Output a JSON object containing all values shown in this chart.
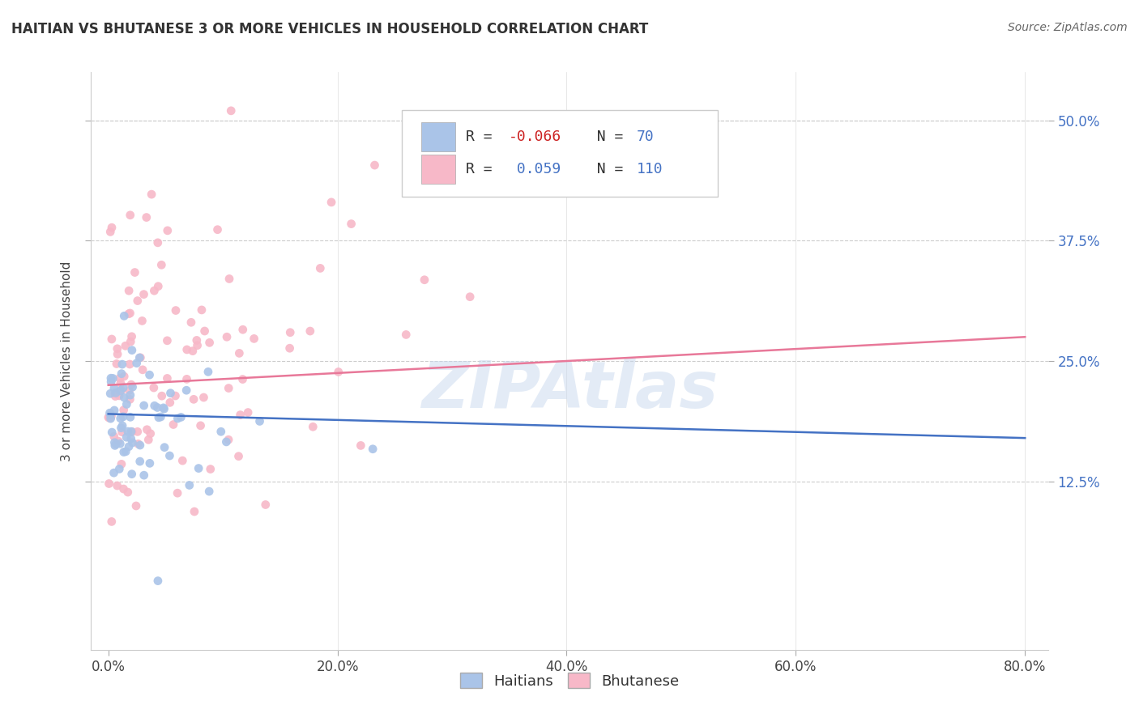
{
  "title": "HAITIAN VS BHUTANESE 3 OR MORE VEHICLES IN HOUSEHOLD CORRELATION CHART",
  "source_text": "Source: ZipAtlas.com",
  "ylabel": "3 or more Vehicles in Household",
  "ytick_vals": [
    12.5,
    25.0,
    37.5,
    50.0
  ],
  "ytick_labels": [
    "12.5%",
    "25.0%",
    "37.5%",
    "50.0%"
  ],
  "xtick_vals": [
    0,
    20,
    40,
    60,
    80
  ],
  "xtick_labels": [
    "0.0%",
    "20.0%",
    "40.0%",
    "60.0%",
    "80.0%"
  ],
  "xlim": [
    -1.5,
    82
  ],
  "ylim": [
    -5.0,
    55.0
  ],
  "haitian_color": "#aac4e8",
  "bhutanese_color": "#f7b8c8",
  "haitian_line_color": "#4472c4",
  "bhutanese_line_color": "#e87899",
  "R_haitian": -0.066,
  "N_haitian": 70,
  "R_bhutanese": 0.059,
  "N_bhutanese": 110,
  "watermark": "ZIPAtlas",
  "background_color": "#ffffff",
  "title_color": "#333333",
  "tick_color": "#4472c4",
  "haitian_line_start_y": 19.5,
  "haitian_line_end_y": 17.0,
  "bhutanese_line_start_y": 22.5,
  "bhutanese_line_end_y": 27.5
}
